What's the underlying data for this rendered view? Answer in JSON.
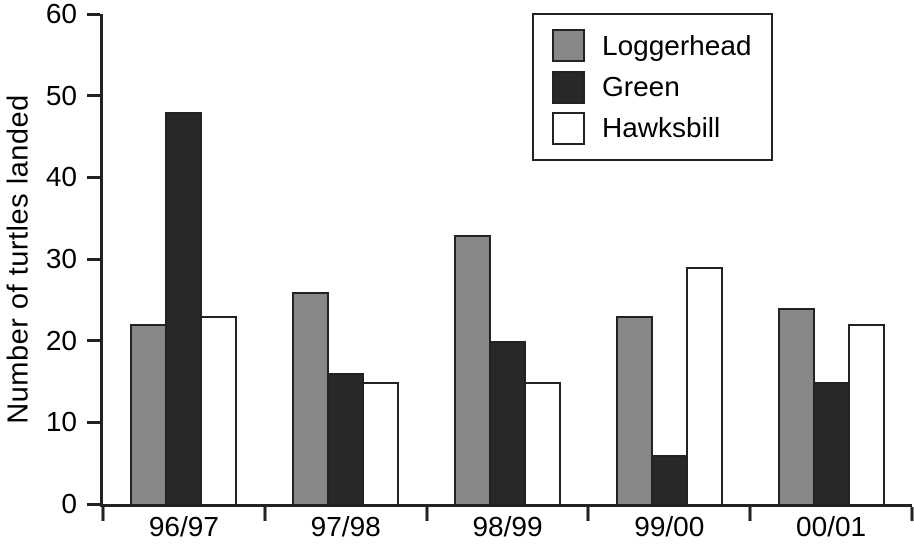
{
  "figure": {
    "background": "#ffffff",
    "axis_color": "#222222",
    "text_color": "#000000"
  },
  "chart_data": {
    "type": "bar",
    "title": "",
    "xlabel": "",
    "ylabel": "Number of turtles landed",
    "categories": [
      "96/97",
      "97/98",
      "98/99",
      "99/00",
      "00/01"
    ],
    "series": [
      {
        "name": "Loggerhead",
        "color": "#878787",
        "values": [
          22,
          26,
          33,
          23,
          24
        ]
      },
      {
        "name": "Green",
        "color": "#282828",
        "values": [
          48,
          16,
          20,
          6,
          15
        ]
      },
      {
        "name": "Hawksbill",
        "color": "#ffffff",
        "values": [
          23,
          15,
          15,
          29,
          22
        ]
      }
    ],
    "ylim": [
      0,
      60
    ],
    "yticks": [
      0,
      10,
      20,
      30,
      40,
      50,
      60
    ],
    "grid": false,
    "legend_position": "top-right",
    "bar_outline_color": "#222222"
  }
}
